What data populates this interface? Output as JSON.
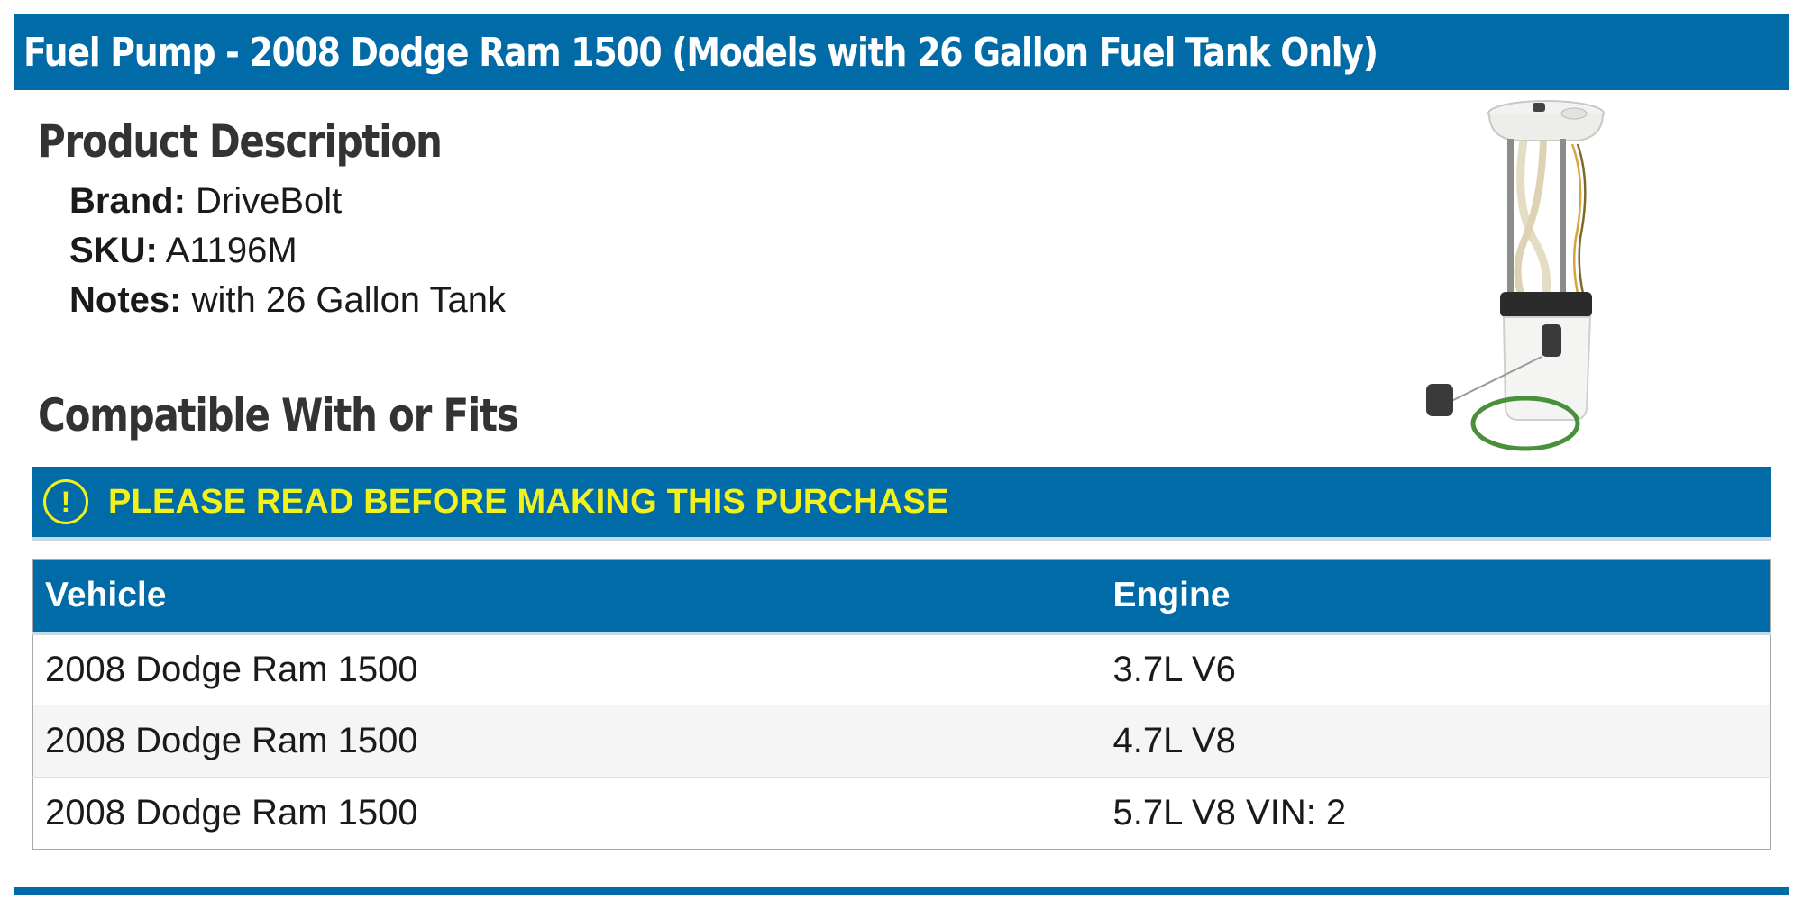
{
  "header": {
    "title": "Fuel Pump - 2008 Dodge Ram 1500 (Models with 26 Gallon Fuel Tank Only)"
  },
  "description": {
    "heading": "Product Description",
    "specs": [
      {
        "label": "Brand:",
        "value": "DriveBolt"
      },
      {
        "label": "SKU:",
        "value": "A1196M"
      },
      {
        "label": "Notes:",
        "value": "with 26 Gallon Tank"
      }
    ]
  },
  "compatibility": {
    "heading": "Compatible With or Fits",
    "notice": {
      "icon": "exclamation-circle-icon",
      "text": "PLEASE READ BEFORE MAKING THIS PURCHASE"
    },
    "table": {
      "columns": [
        "Vehicle",
        "Engine"
      ],
      "rows": [
        [
          "2008 Dodge Ram 1500",
          "3.7L V6"
        ],
        [
          "2008 Dodge Ram 1500",
          "4.7L V8"
        ],
        [
          "2008 Dodge Ram 1500",
          "5.7L V8 VIN: 2"
        ]
      ]
    }
  },
  "colors": {
    "brand": "#006ba6",
    "notice_text": "#f2f21a",
    "heading": "#333333"
  }
}
